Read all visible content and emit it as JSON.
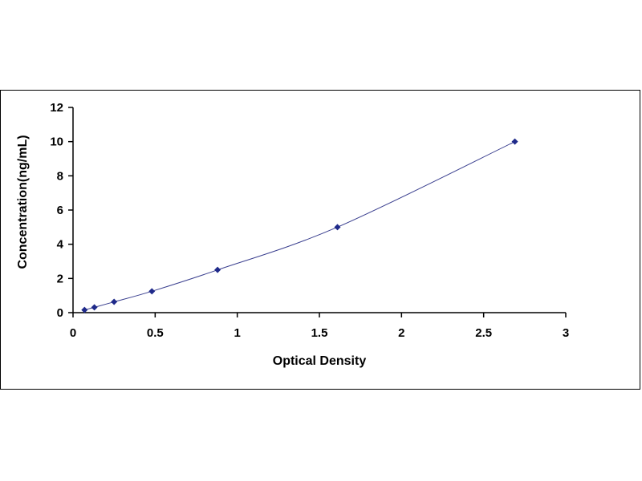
{
  "chart_data": {
    "type": "scatter",
    "xlabel": "Optical Density",
    "ylabel": "Concentration(ng/mL)",
    "xlim": [
      0,
      3
    ],
    "ylim": [
      0,
      12
    ],
    "x_ticks": [
      0,
      0.5,
      1,
      1.5,
      2,
      2.5,
      3
    ],
    "x_tick_labels": [
      "0",
      "0.5",
      "1",
      "1.5",
      "2",
      "2.5",
      "3"
    ],
    "y_ticks": [
      0,
      2,
      4,
      6,
      8,
      10,
      12
    ],
    "y_tick_labels": [
      "0",
      "2",
      "4",
      "6",
      "8",
      "10",
      "12"
    ],
    "grid": false,
    "series": [
      {
        "x": [
          0.07,
          0.13,
          0.25,
          0.48,
          0.88,
          1.61,
          2.69
        ],
        "y": [
          0.16,
          0.31,
          0.63,
          1.25,
          2.5,
          5,
          10
        ],
        "color": "#1f2a8a",
        "trendline": true
      }
    ]
  }
}
